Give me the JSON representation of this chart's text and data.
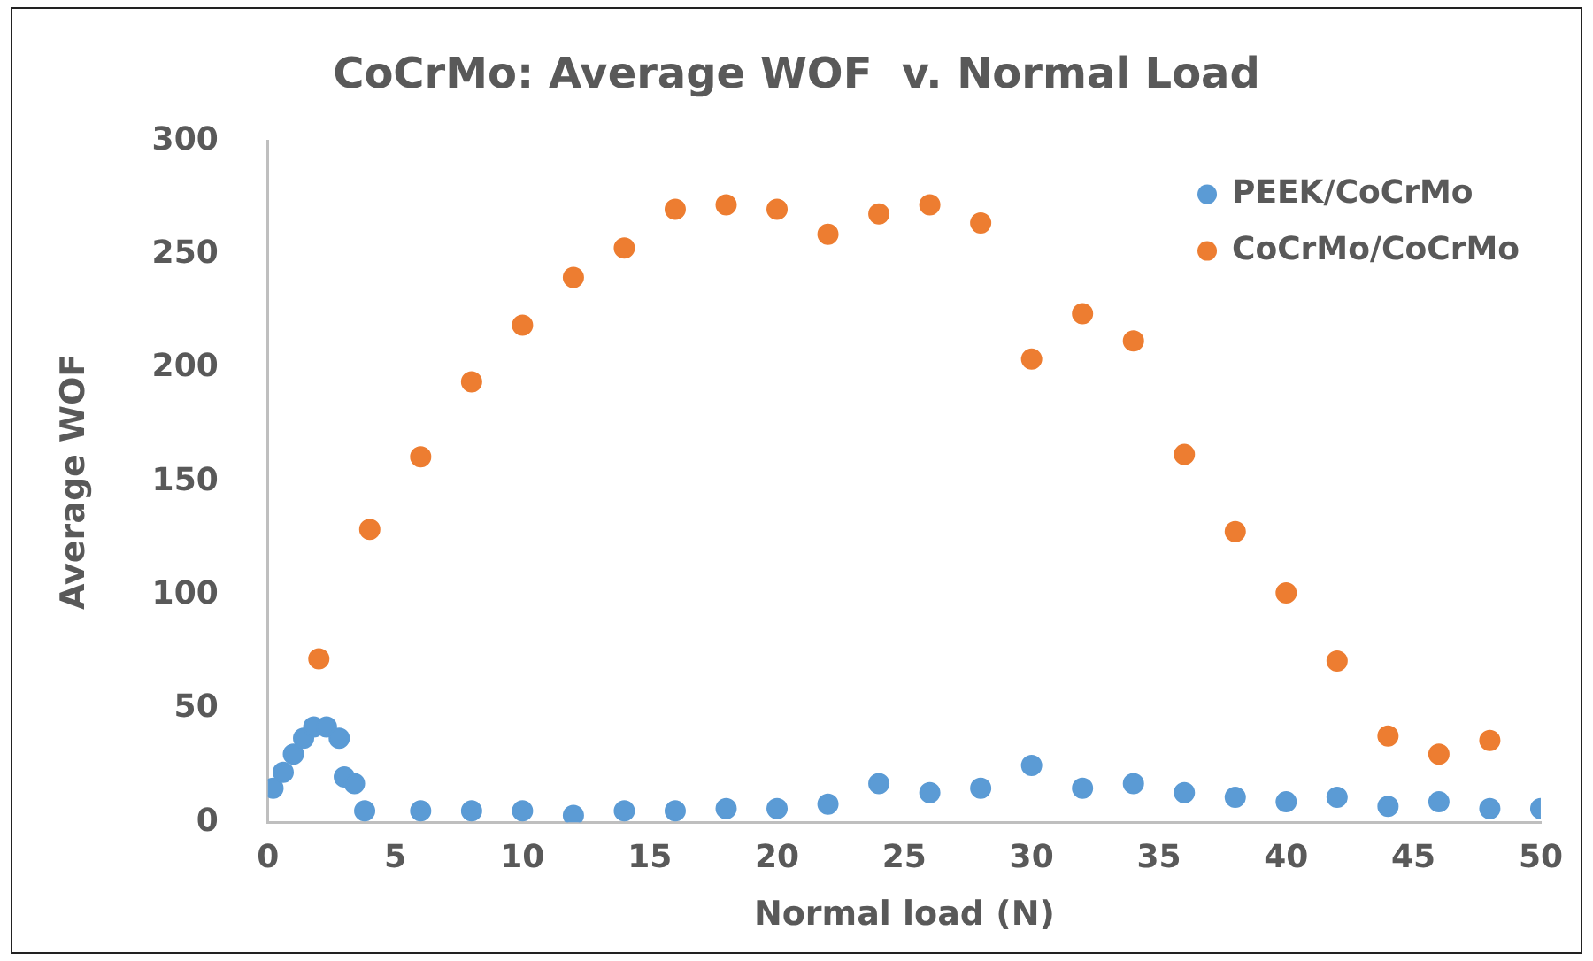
{
  "chart_data": {
    "type": "scatter",
    "title": "CoCrMo: Average WOF  v. Normal Load",
    "xlabel": "Normal load (N)",
    "ylabel": "Average WOF",
    "xlim": [
      0,
      50
    ],
    "xticks": [
      0,
      5,
      10,
      15,
      20,
      25,
      30,
      35,
      40,
      45,
      50
    ],
    "ylim": [
      0,
      300
    ],
    "yticks": [
      0,
      50,
      100,
      150,
      200,
      250,
      300
    ],
    "grid": false,
    "legend": "top right",
    "marker": "circle",
    "series": [
      {
        "name": "PEEK/CoCrMo",
        "color": "#5b9bd5",
        "x": [
          0.2,
          0.6,
          1,
          1.4,
          1.8,
          2.3,
          2.8,
          3,
          3.4,
          3.8,
          6,
          8,
          10,
          12,
          14,
          16,
          18,
          20,
          22,
          24,
          26,
          28,
          30,
          32,
          34,
          36,
          38,
          40,
          42,
          44,
          46,
          48,
          50
        ],
        "values": [
          15,
          22,
          30,
          37,
          42,
          42,
          37,
          20,
          17,
          5,
          5,
          5,
          5,
          3,
          5,
          5,
          6,
          6,
          8,
          17,
          13,
          15,
          25,
          15,
          17,
          13,
          11,
          9,
          11,
          7,
          9,
          6,
          6
        ]
      },
      {
        "name": "CoCrMo/CoCrMo",
        "color": "#ed7d31",
        "x": [
          2,
          4,
          6,
          8,
          10,
          12,
          14,
          16,
          18,
          20,
          22,
          24,
          26,
          28,
          30,
          32,
          34,
          36,
          38,
          40,
          42,
          44,
          46,
          48
        ],
        "values": [
          72,
          129,
          161,
          194,
          219,
          240,
          253,
          270,
          272,
          270,
          259,
          268,
          272,
          264,
          204,
          224,
          212,
          162,
          128,
          101,
          71,
          38,
          30,
          36
        ]
      }
    ]
  }
}
